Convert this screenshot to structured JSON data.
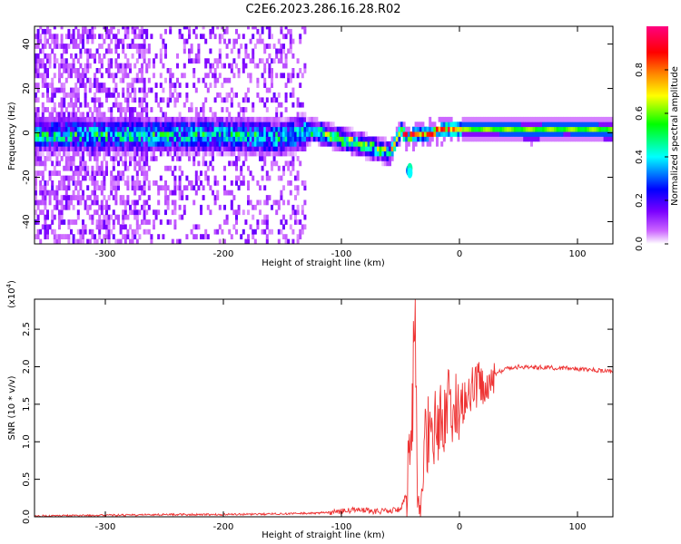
{
  "title": "C2E6.2023.286.16.28.R02",
  "chart_data": [
    {
      "type": "heatmap",
      "xlabel": "Height of straight line (km)",
      "ylabel": "Frequency (Hz)",
      "xlim": [
        -360,
        130
      ],
      "ylim": [
        -50,
        48
      ],
      "x_ticks": [
        -300,
        -200,
        -100,
        0,
        100
      ],
      "y_ticks": [
        -40,
        -20,
        0,
        20,
        40
      ],
      "grid": false,
      "colorbar": {
        "label": "Normalized spectral amplitude",
        "range": [
          0,
          1
        ],
        "ticks": [
          0.0,
          0.2,
          0.4,
          0.6,
          0.8
        ],
        "colormap": [
          "#ffffff",
          "#cc66ff",
          "#7a00ff",
          "#0000ff",
          "#00ffff",
          "#00ff00",
          "#ffff00",
          "#ff8800",
          "#ff0000",
          "#ff0080"
        ]
      },
      "ridge": {
        "x": [
          -260,
          -200,
          -150,
          -125,
          -100,
          -80,
          -60,
          -50,
          -45,
          -30,
          -15,
          0,
          30,
          60,
          90,
          130
        ],
        "freq_hz": [
          -2,
          -2,
          -3,
          0,
          -4,
          -7,
          -10,
          0,
          -3,
          -1,
          0,
          1,
          1,
          0,
          1,
          0
        ]
      }
    },
    {
      "type": "line",
      "xlabel": "Height of straight line (km)",
      "ylabel": "SNR (10 * v/v)",
      "y_multiplier": "(x10",
      "y_exponent": "4",
      "xlim": [
        -360,
        130
      ],
      "ylim": [
        0,
        2.9
      ],
      "x_ticks": [
        -300,
        -200,
        -100,
        0,
        100
      ],
      "y_ticks": [
        0.0,
        0.5,
        1.0,
        1.5,
        2.0,
        2.5
      ],
      "grid": false,
      "series": [
        {
          "color": "#ee3333",
          "x": [
            -360,
            -300,
            -250,
            -200,
            -150,
            -120,
            -100,
            -85,
            -70,
            -60,
            -50,
            -45,
            -40,
            -38,
            -36,
            -33,
            -30,
            -25,
            -20,
            -15,
            -10,
            -5,
            0,
            5,
            10,
            15,
            20,
            25,
            30,
            40,
            50,
            70,
            90,
            110,
            130
          ],
          "y": [
            0.01,
            0.02,
            0.03,
            0.03,
            0.04,
            0.05,
            0.07,
            0.1,
            0.07,
            0.08,
            0.1,
            0.3,
            1.0,
            2.9,
            0.6,
            0.4,
            1.0,
            1.3,
            1.2,
            1.3,
            1.4,
            1.5,
            1.5,
            1.55,
            1.7,
            1.75,
            1.8,
            1.85,
            1.9,
            1.98,
            2.0,
            1.99,
            1.98,
            1.96,
            1.93
          ]
        }
      ]
    }
  ]
}
